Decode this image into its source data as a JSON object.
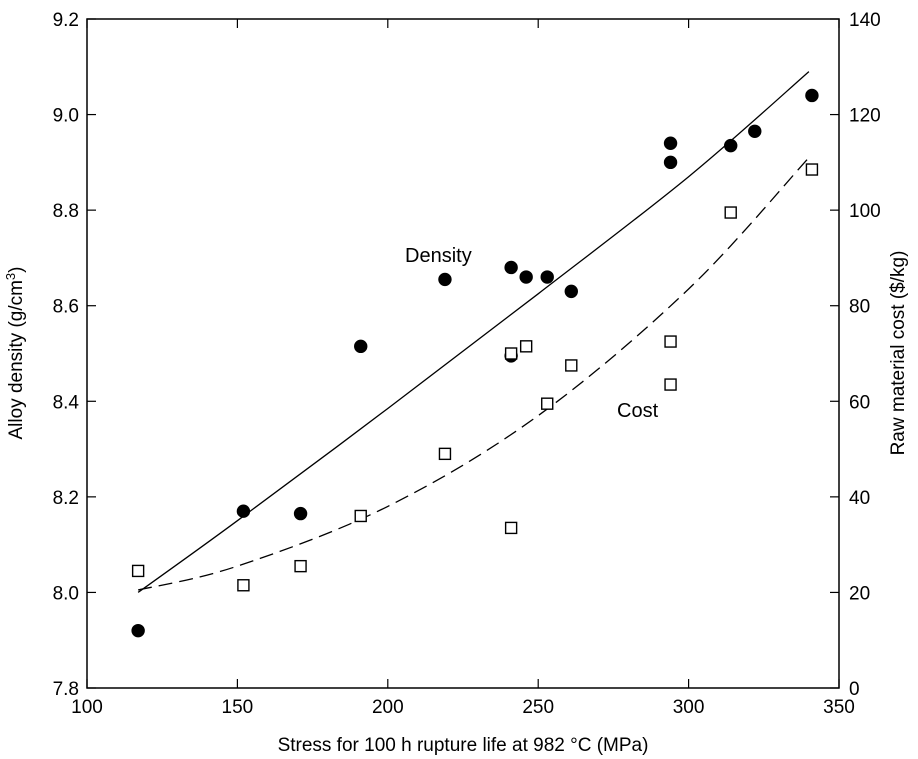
{
  "chart_data": {
    "type": "scatter",
    "title": "",
    "xlabel": "Stress for 100 h rupture life at 982 °C (MPa)",
    "ylabel_left_main": "Alloy density (g/cm",
    "ylabel_left_sup": "3",
    "ylabel_left_tail": ")",
    "ylabel_right": "Raw material cost ($/kg)",
    "xlim": [
      100,
      350
    ],
    "ylim_left": [
      7.8,
      9.2
    ],
    "ylim_right": [
      0,
      140
    ],
    "x_ticks": [
      "100",
      "150",
      "200",
      "250",
      "300",
      "350"
    ],
    "y_left_ticks": [
      "7.8",
      "8.0",
      "8.2",
      "8.4",
      "8.6",
      "8.8",
      "9.0",
      "9.2"
    ],
    "y_right_ticks": [
      "0",
      "20",
      "40",
      "60",
      "80",
      "100",
      "120",
      "140"
    ],
    "grid": false,
    "annotations": {
      "density": "Density",
      "cost": "Cost"
    },
    "series": [
      {
        "name": "Density",
        "axis": "left",
        "marker": "filled-circle",
        "points": [
          [
            117,
            7.92
          ],
          [
            152,
            8.17
          ],
          [
            171,
            8.165
          ],
          [
            191,
            8.515
          ],
          [
            219,
            8.655
          ],
          [
            241,
            8.68
          ],
          [
            241,
            8.495
          ],
          [
            246,
            8.66
          ],
          [
            253,
            8.66
          ],
          [
            261,
            8.63
          ],
          [
            294,
            8.94
          ],
          [
            294,
            8.9
          ],
          [
            314,
            8.935
          ],
          [
            322,
            8.965
          ],
          [
            341,
            9.04
          ]
        ]
      },
      {
        "name": "Cost",
        "axis": "right",
        "marker": "open-square",
        "points": [
          [
            117,
            24.5
          ],
          [
            152,
            21.5
          ],
          [
            171,
            25.5
          ],
          [
            191,
            36
          ],
          [
            219,
            49
          ],
          [
            241,
            70
          ],
          [
            246,
            71.5
          ],
          [
            241,
            33.5
          ],
          [
            253,
            59.5
          ],
          [
            261,
            67.5
          ],
          [
            294,
            72.5
          ],
          [
            294,
            63.5
          ],
          [
            314,
            99.5
          ],
          [
            341,
            108.5
          ]
        ]
      },
      {
        "name": "Density fit",
        "axis": "left",
        "style": "solid",
        "points": [
          [
            117,
            8.0
          ],
          [
            150,
            8.15
          ],
          [
            200,
            8.385
          ],
          [
            250,
            8.625
          ],
          [
            300,
            8.87
          ],
          [
            340,
            9.09
          ]
        ]
      },
      {
        "name": "Cost fit",
        "axis": "right",
        "style": "dashed",
        "points": [
          [
            117,
            20.5
          ],
          [
            150,
            25.5
          ],
          [
            200,
            38
          ],
          [
            250,
            57
          ],
          [
            300,
            83.5
          ],
          [
            340,
            111
          ]
        ]
      }
    ]
  }
}
